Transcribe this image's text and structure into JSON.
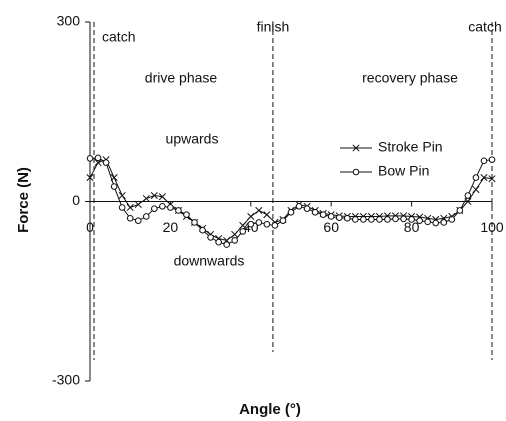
{
  "chart_data": {
    "type": "line",
    "x_label": "Angle (°)",
    "y_label": "Force (N)",
    "xlim": [
      0,
      100
    ],
    "xticks": [
      0,
      20,
      40,
      60,
      80,
      100
    ],
    "ylim": [
      -300,
      300
    ],
    "yticks": [
      -300,
      0,
      300
    ],
    "x": [
      0,
      2,
      4,
      6,
      8,
      10,
      12,
      14,
      16,
      18,
      20,
      22,
      24,
      26,
      28,
      30,
      32,
      34,
      36,
      38,
      40,
      42,
      44,
      46,
      48,
      50,
      52,
      54,
      56,
      58,
      60,
      62,
      64,
      66,
      68,
      70,
      72,
      74,
      76,
      78,
      80,
      82,
      84,
      86,
      88,
      90,
      92,
      94,
      96,
      98,
      100
    ],
    "series": [
      {
        "name": "Stroke Pin",
        "color": "#111111",
        "marker": "x",
        "values": [
          40,
          65,
          70,
          40,
          10,
          -10,
          -5,
          5,
          10,
          8,
          -5,
          -15,
          -25,
          -35,
          -45,
          -55,
          -62,
          -65,
          -55,
          -40,
          -25,
          -15,
          -22,
          -35,
          -30,
          -15,
          -5,
          -8,
          -15,
          -20,
          -22,
          -24,
          -25,
          -25,
          -25,
          -25,
          -25,
          -24,
          -24,
          -24,
          -25,
          -26,
          -28,
          -30,
          -28,
          -25,
          -15,
          0,
          20,
          40,
          38
        ]
      },
      {
        "name": "Bow Pin",
        "color": "#111111",
        "marker": "circle",
        "values": [
          72,
          73,
          65,
          25,
          -10,
          -28,
          -32,
          -25,
          -12,
          -8,
          -10,
          -15,
          -22,
          -35,
          -48,
          -60,
          -68,
          -72,
          -65,
          -50,
          -38,
          -35,
          -38,
          -40,
          -32,
          -18,
          -8,
          -12,
          -18,
          -22,
          -25,
          -27,
          -28,
          -30,
          -30,
          -30,
          -30,
          -30,
          -29,
          -29,
          -30,
          -32,
          -34,
          -36,
          -35,
          -30,
          -15,
          10,
          40,
          68,
          70
        ]
      }
    ],
    "phase_lines": [
      {
        "x": 1,
        "label": "catch"
      },
      {
        "x": 45.5,
        "label": "finish"
      },
      {
        "x": 100,
        "label": "catch"
      }
    ],
    "annotations": [
      "drive phase",
      "recovery phase",
      "upwards",
      "downwards"
    ],
    "legend": "right"
  }
}
